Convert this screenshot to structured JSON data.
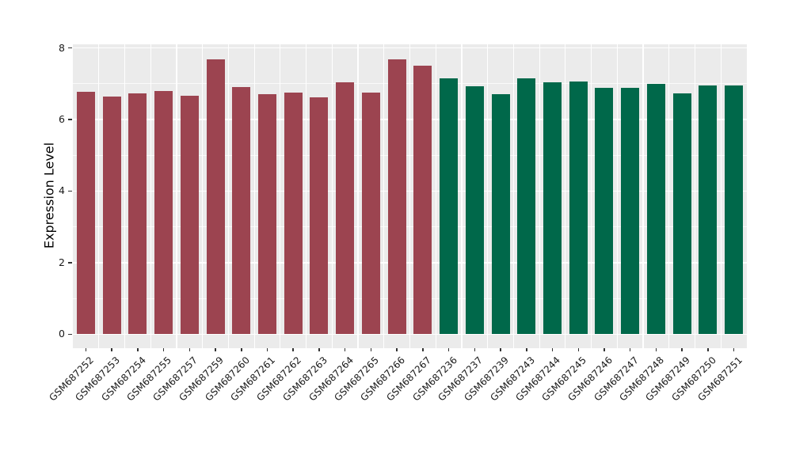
{
  "chart_data": {
    "type": "bar",
    "title": "",
    "xlabel": "",
    "ylabel": "Expression Level",
    "ylim": [
      -0.39,
      8.1
    ],
    "yticks": [
      0,
      2,
      4,
      6,
      8
    ],
    "yticks_minor": [
      1,
      3,
      5,
      7
    ],
    "grid": true,
    "legend_position": "none",
    "panel_bg": "#ebebeb",
    "grid_color": "#ffffff",
    "tick_color": "#333333",
    "text_color": "#1a1a1a",
    "group_colors": [
      "#9c4450",
      "#00684a"
    ],
    "categories": [
      "GSM687252",
      "GSM687253",
      "GSM687254",
      "GSM687255",
      "GSM687257",
      "GSM687259",
      "GSM687260",
      "GSM687261",
      "GSM687262",
      "GSM687263",
      "GSM687264",
      "GSM687265",
      "GSM687266",
      "GSM687267",
      "GSM687236",
      "GSM687237",
      "GSM687239",
      "GSM687243",
      "GSM687244",
      "GSM687245",
      "GSM687246",
      "GSM687247",
      "GSM687248",
      "GSM687249",
      "GSM687250",
      "GSM687251"
    ],
    "values": [
      6.77,
      6.65,
      6.73,
      6.8,
      6.67,
      7.69,
      6.91,
      6.7,
      6.75,
      6.61,
      7.05,
      6.76,
      7.69,
      7.5,
      7.14,
      6.92,
      6.7,
      7.14,
      7.05,
      7.07,
      6.89,
      6.89,
      6.99,
      6.74,
      6.94,
      6.96
    ],
    "bar_group": [
      0,
      0,
      0,
      0,
      0,
      0,
      0,
      0,
      0,
      0,
      0,
      0,
      0,
      0,
      1,
      1,
      1,
      1,
      1,
      1,
      1,
      1,
      1,
      1,
      1,
      1
    ]
  }
}
